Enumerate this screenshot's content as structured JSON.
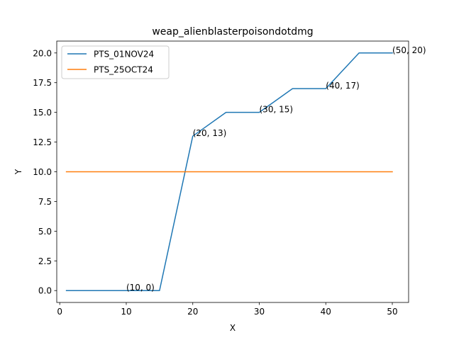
{
  "chart_data": {
    "type": "line",
    "title": "weap_alienblasterpoisondotdmg",
    "xlabel": "X",
    "ylabel": "Y",
    "xlim": [
      -0.45,
      52.45
    ],
    "ylim": [
      -1.0,
      21.0
    ],
    "xticks": [
      0,
      10,
      20,
      30,
      40,
      50
    ],
    "yticks": [
      0.0,
      2.5,
      5.0,
      7.5,
      10.0,
      12.5,
      15.0,
      17.5,
      20.0
    ],
    "ytick_labels": [
      "0.0",
      "2.5",
      "5.0",
      "7.5",
      "10.0",
      "12.5",
      "15.0",
      "17.5",
      "20.0"
    ],
    "grid": false,
    "legend_position": "top-left",
    "series": [
      {
        "name": "PTS_01NOV24",
        "color": "#1f77b4",
        "x": [
          1,
          15,
          20,
          25,
          30,
          35,
          40,
          45,
          50
        ],
        "y": [
          0,
          0,
          13,
          15,
          15,
          17,
          17,
          20,
          20
        ]
      },
      {
        "name": "PTS_25OCT24",
        "color": "#ff7f0e",
        "x": [
          1,
          50
        ],
        "y": [
          10,
          10
        ]
      }
    ],
    "annotations": [
      {
        "text": "(10, 0)",
        "x": 10,
        "y": 0
      },
      {
        "text": "(20, 13)",
        "x": 20,
        "y": 13
      },
      {
        "text": "(30, 15)",
        "x": 30,
        "y": 15
      },
      {
        "text": "(40, 17)",
        "x": 40,
        "y": 17
      },
      {
        "text": "(50, 20)",
        "x": 50,
        "y": 20
      }
    ]
  }
}
